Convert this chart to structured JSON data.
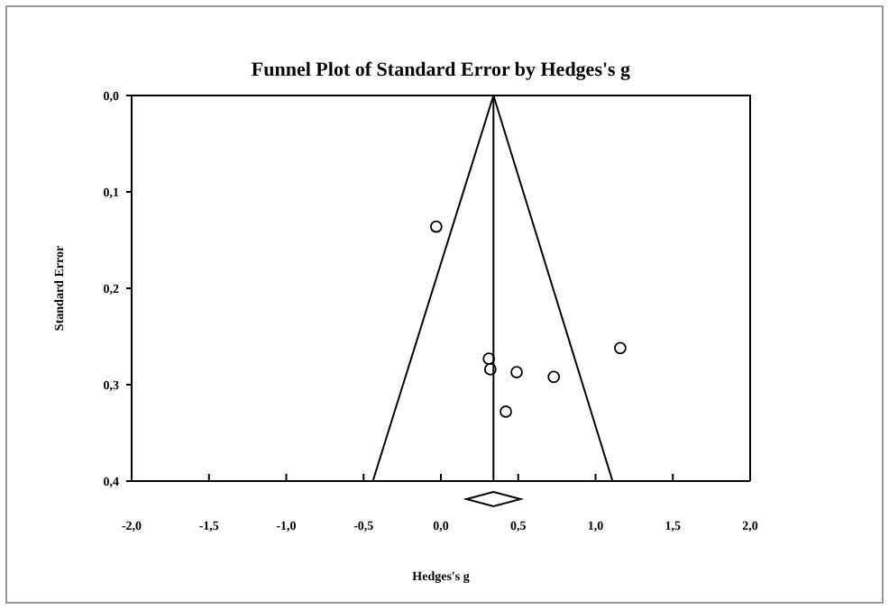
{
  "chart_data": {
    "type": "scatter",
    "title": "Funnel Plot of Standard Error by Hedges's g",
    "xlabel": "Hedges's g",
    "ylabel": "Standard Error",
    "xlim": [
      -2,
      2
    ],
    "xticks": [
      {
        "value": -2,
        "label": "-2,0"
      },
      {
        "value": -1.5,
        "label": "-1,5"
      },
      {
        "value": -1,
        "label": "-1,0"
      },
      {
        "value": -0.5,
        "label": "-0,5"
      },
      {
        "value": 0,
        "label": "0,0"
      },
      {
        "value": 0.5,
        "label": "0,5"
      },
      {
        "value": 1,
        "label": "1,0"
      },
      {
        "value": 1.5,
        "label": "1,5"
      },
      {
        "value": 2,
        "label": "2,0"
      }
    ],
    "ylim": [
      0.4,
      0
    ],
    "yticks": [
      {
        "value": 0,
        "label": "0,0"
      },
      {
        "value": 0.1,
        "label": "0,1"
      },
      {
        "value": 0.2,
        "label": "0,2"
      },
      {
        "value": 0.3,
        "label": "0,3"
      },
      {
        "value": 0.4,
        "label": "0,4"
      }
    ],
    "grid": false,
    "series": [
      {
        "marker": "circle",
        "color": "#000000",
        "x": [
          -0.03,
          0.31,
          0.32,
          0.49,
          0.73,
          0.42,
          1.16
        ],
        "values": [
          0.136,
          0.273,
          0.284,
          0.287,
          0.292,
          0.328,
          0.262
        ]
      },
      {
        "type": "line",
        "color": "#000000",
        "x": [
          -0.44,
          0.34,
          1.11
        ],
        "values": [
          0.4,
          0,
          0.4
        ]
      }
    ],
    "ref_lines": [
      {
        "axis": "x",
        "value": 0.34,
        "color": "#000000"
      }
    ]
  }
}
